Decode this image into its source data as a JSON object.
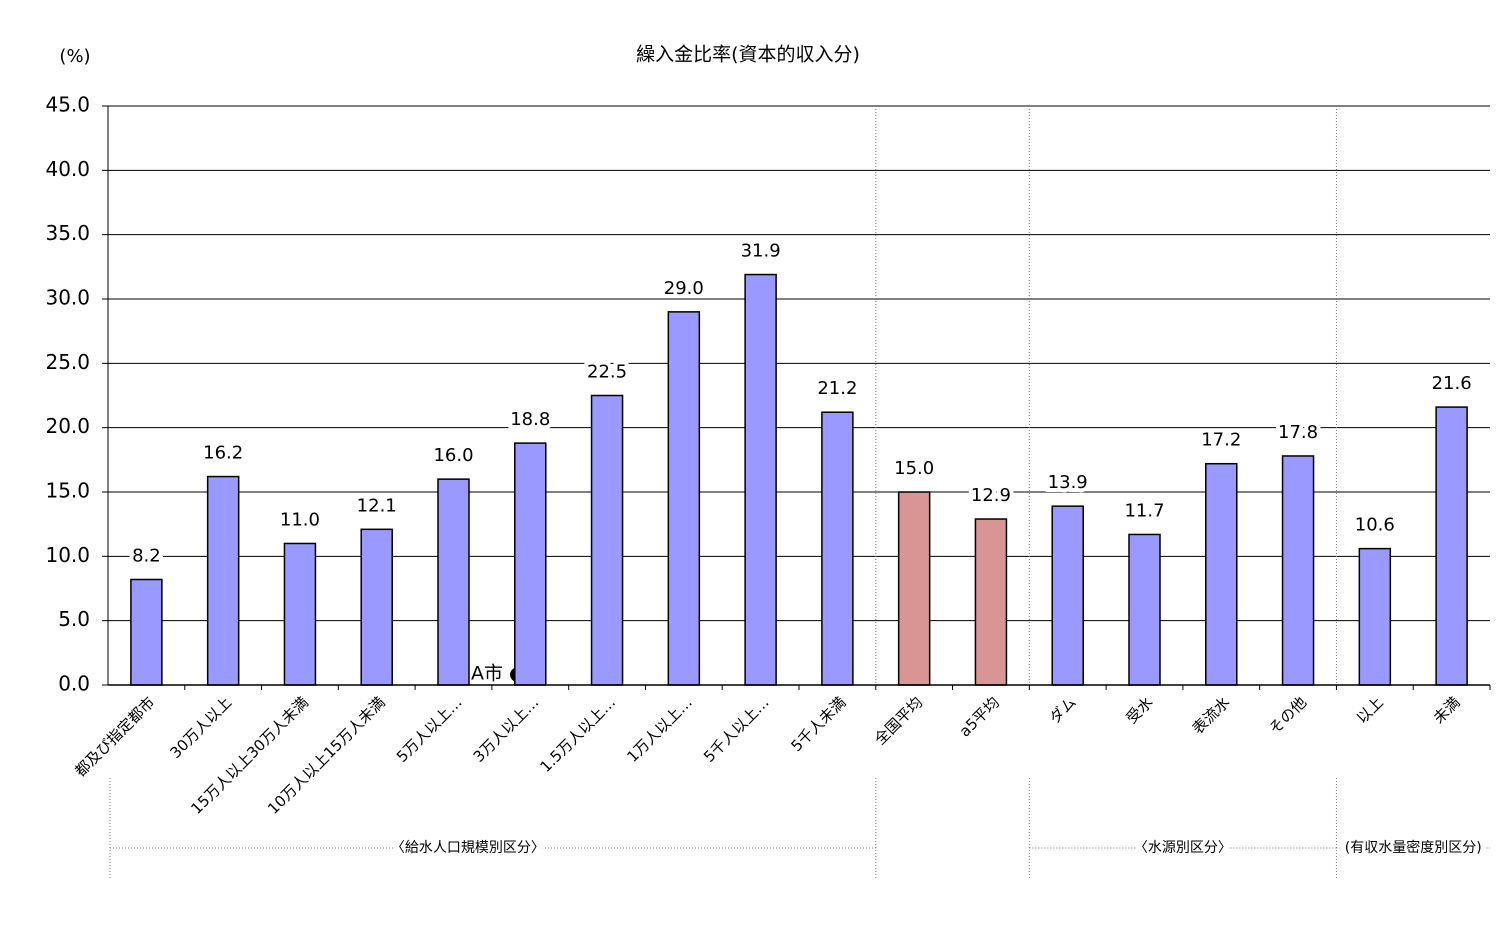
{
  "chart_data": {
    "type": "bar",
    "title": "繰入金比率(資本的収入分)",
    "y_unit_label": "(%)",
    "categories": [
      "都及び指定都市",
      "30万人以上",
      "15万人以上30万人未満",
      "10万人以上15万人未満",
      "5万人以上…",
      "3万人以上…",
      "1.5万人以上…",
      "1万人以上…",
      "5千人以上…",
      "5千人未満",
      "全国平均",
      "a5平均",
      "ダム",
      "受水",
      "表流水",
      "その他",
      "以上",
      "未満"
    ],
    "values": [
      8.2,
      16.2,
      11.0,
      12.1,
      16.0,
      18.8,
      22.5,
      29.0,
      31.9,
      21.2,
      15.0,
      12.9,
      13.9,
      11.7,
      17.2,
      17.8,
      10.6,
      21.6
    ],
    "value_labels": [
      "8.2",
      "16.2",
      "11.0",
      "12.1",
      "16.0",
      "18.8",
      "22.5",
      "29.0",
      "31.9",
      "21.2",
      "15.0",
      "12.9",
      "13.9",
      "11.7",
      "17.2",
      "17.8",
      "10.6",
      "21.6"
    ],
    "colors": [
      "#9999ff",
      "#9999ff",
      "#9999ff",
      "#9999ff",
      "#9999ff",
      "#9999ff",
      "#9999ff",
      "#9999ff",
      "#9999ff",
      "#9999ff",
      "#d99594",
      "#d99594",
      "#9999ff",
      "#9999ff",
      "#9999ff",
      "#9999ff",
      "#9999ff",
      "#9999ff"
    ],
    "ylim": [
      0,
      45
    ],
    "yticks": [
      {
        "value": 0,
        "label": "0.0"
      },
      {
        "value": 5,
        "label": "5.0"
      },
      {
        "value": 10,
        "label": "10.0"
      },
      {
        "value": 15,
        "label": "15.0"
      },
      {
        "value": 20,
        "label": "20.0"
      },
      {
        "value": 25,
        "label": "25.0"
      },
      {
        "value": 30,
        "label": "30.0"
      },
      {
        "value": 35,
        "label": "35.0"
      },
      {
        "value": 40,
        "label": "40.0"
      },
      {
        "value": 45,
        "label": "45.0"
      }
    ],
    "grid": true,
    "annotation": "A市 ●",
    "groups": [
      "〈給水人口規模別区分〉",
      "〈水源別区分〉",
      "(有収水量密度別区分)"
    ]
  }
}
